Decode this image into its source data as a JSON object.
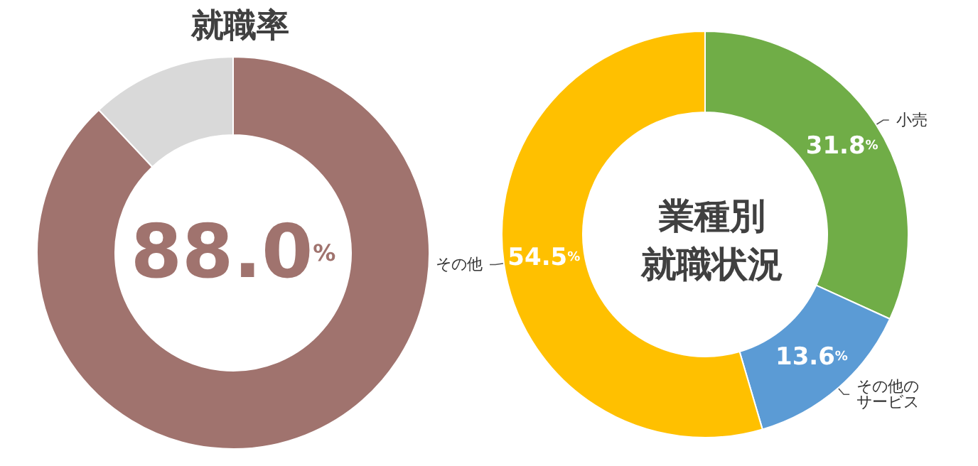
{
  "chart_data": [
    {
      "type": "donut",
      "title": "就職率",
      "categories": [
        null,
        null
      ],
      "values": [
        88.0,
        12.0
      ],
      "colors": [
        "#a0736e",
        "#d9d9d9"
      ],
      "value_labels": [
        "88.0%",
        null
      ]
    },
    {
      "type": "donut",
      "title": "業種別",
      "subtitle": "就職状況",
      "categories": [
        "小売",
        "その他のサービス",
        "その他"
      ],
      "values": [
        31.8,
        13.6,
        54.5
      ],
      "colors": [
        "#70ad47",
        "#5b9bd5",
        "#ffc000"
      ],
      "value_labels": [
        "31.8%",
        "13.6%",
        "54.5%"
      ]
    }
  ]
}
